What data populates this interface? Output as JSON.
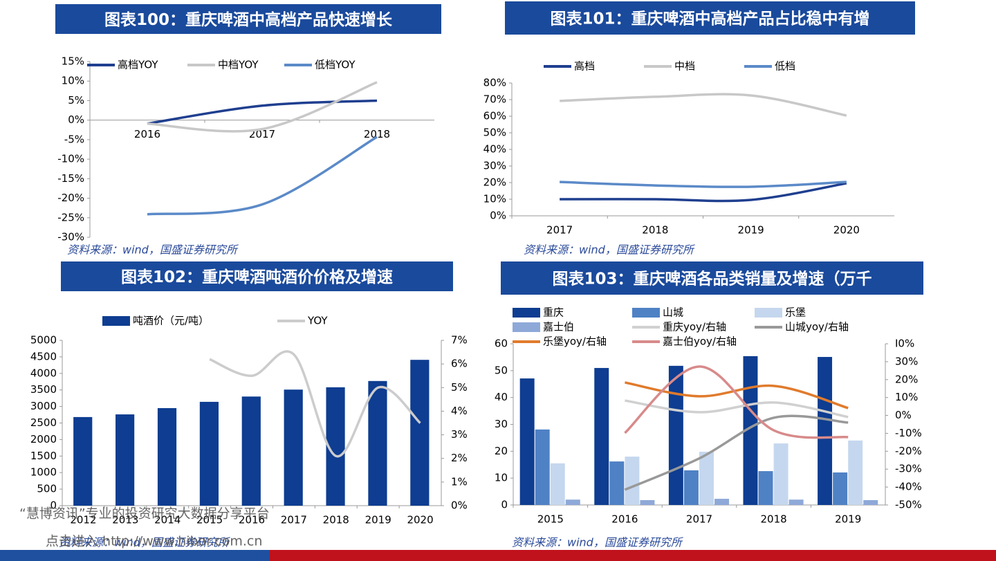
{
  "chart_data": [
    {
      "type": "line",
      "title": "图表100：重庆啤酒中高档产品快速增长",
      "source": "资料来源：wind，国盛证券研究所",
      "categories": [
        "2016",
        "2017",
        "2018"
      ],
      "series": [
        {
          "name": "高档YOY",
          "color": "#1f3f8f",
          "values": [
            -0.9,
            3.7,
            5.0
          ]
        },
        {
          "name": "中档YOY",
          "color": "#c8c8c8",
          "values": [
            -0.9,
            -2.3,
            9.7
          ]
        },
        {
          "name": "低档YOY",
          "color": "#5b8ac8",
          "values": [
            -24.1,
            -21.6,
            -4.3
          ]
        }
      ],
      "ylim": [
        -30,
        15
      ],
      "yticks": [
        {
          "value": -30,
          "label": "-30%"
        },
        {
          "value": -25,
          "label": "-25%"
        },
        {
          "value": -20,
          "label": "-20%"
        },
        {
          "value": -15,
          "label": "-15%"
        },
        {
          "value": -10,
          "label": "-10%"
        },
        {
          "value": -5,
          "label": "-5%"
        },
        {
          "value": 0,
          "label": "0%"
        },
        {
          "value": 5,
          "label": "5%"
        },
        {
          "value": 10,
          "label": "10%"
        },
        {
          "value": 15,
          "label": "15%"
        }
      ]
    },
    {
      "type": "line",
      "title": "图表101：重庆啤酒中高档产品占比稳中有增",
      "source": "资料来源：wind，国盛证券研究所",
      "categories": [
        "2017",
        "2018",
        "2019",
        "2020"
      ],
      "series": [
        {
          "name": "高档",
          "color": "#1f3f8f",
          "values": [
            10.0,
            10.0,
            9.6,
            19.6
          ]
        },
        {
          "name": "中档",
          "color": "#c8c8c8",
          "values": [
            69.2,
            71.7,
            72.5,
            60.4
          ]
        },
        {
          "name": "低档",
          "color": "#5b8ac8",
          "values": [
            20.4,
            18.3,
            17.5,
            20.4
          ]
        }
      ],
      "ylim": [
        0,
        80
      ],
      "yticks": [
        {
          "value": 0,
          "label": "0%"
        },
        {
          "value": 10,
          "label": "10%"
        },
        {
          "value": 20,
          "label": "20%"
        },
        {
          "value": 30,
          "label": "30%"
        },
        {
          "value": 40,
          "label": "40%"
        },
        {
          "value": 50,
          "label": "50%"
        },
        {
          "value": 60,
          "label": "60%"
        },
        {
          "value": 70,
          "label": "70%"
        },
        {
          "value": 80,
          "label": "80%"
        }
      ]
    },
    {
      "type": "combo",
      "title": "图表102：重庆啤酒吨酒价价格及增速",
      "source": "资料来源：wind，国盛证券研究所",
      "categories": [
        "2012",
        "2013",
        "2014",
        "2015",
        "2016",
        "2017",
        "2018",
        "2019",
        "2020"
      ],
      "series": [
        {
          "name": "吨酒价（元/吨）",
          "type": "bar",
          "color": "#0e3d91",
          "values": [
            2680,
            2760,
            2950,
            3140,
            3300,
            3510,
            3580,
            3770,
            4410
          ]
        },
        {
          "name": "YOY",
          "type": "line",
          "axis": "y2",
          "color": "#cccccc",
          "values": [
            null,
            null,
            null,
            6.2,
            5.5,
            6.4,
            2.1,
            5.0,
            3.5
          ]
        }
      ],
      "ylim": [
        0,
        5000
      ],
      "yticks": [
        0,
        500,
        1000,
        1500,
        2000,
        2500,
        3000,
        3500,
        4000,
        4500,
        5000
      ],
      "y2lim": [
        0,
        7
      ],
      "y2ticks": [
        {
          "value": 0,
          "label": "0%"
        },
        {
          "value": 1,
          "label": "1%"
        },
        {
          "value": 2,
          "label": "2%"
        },
        {
          "value": 3,
          "label": "3%"
        },
        {
          "value": 4,
          "label": "4%"
        },
        {
          "value": 5,
          "label": "5%"
        },
        {
          "value": 6,
          "label": "6%"
        },
        {
          "value": 7,
          "label": "7%"
        }
      ]
    },
    {
      "type": "combo",
      "title": "图表103：重庆啤酒各品类销量及增速（万千",
      "source": "资料来源：wind，国盛证券研究所",
      "categories": [
        "2015",
        "2016",
        "2017",
        "2018",
        "2019"
      ],
      "series": [
        {
          "name": "重庆",
          "type": "bar",
          "color": "#0e3d91",
          "values": [
            47.1,
            51.0,
            51.8,
            55.4,
            55.1
          ]
        },
        {
          "name": "山城",
          "type": "bar",
          "color": "#4f81c5",
          "values": [
            28.1,
            16.2,
            12.9,
            12.6,
            12.1
          ]
        },
        {
          "name": "乐堡",
          "type": "bar",
          "color": "#c5d7ee",
          "values": [
            15.5,
            18.0,
            19.8,
            22.9,
            24.0
          ]
        },
        {
          "name": "嘉士伯",
          "type": "bar",
          "color": "#8ea9d8",
          "values": [
            2.0,
            1.8,
            2.3,
            2.0,
            1.8
          ]
        },
        {
          "name": "重庆yoy/右轴",
          "type": "line",
          "axis": "y2",
          "color": "#d0d0d0",
          "values": [
            null,
            8.3,
            1.8,
            7.2,
            -0.9
          ]
        },
        {
          "name": "山城yoy/右轴",
          "type": "line",
          "axis": "y2",
          "color": "#999999",
          "values": [
            null,
            -41.5,
            -24.0,
            -1.3,
            -4.0
          ]
        },
        {
          "name": "乐堡yoy/右轴",
          "type": "line",
          "axis": "y2",
          "color": "#e07b2c",
          "values": [
            null,
            18.4,
            10.7,
            16.5,
            4.1
          ]
        },
        {
          "name": "嘉士伯yoy/右轴",
          "type": "line",
          "axis": "y2",
          "color": "#d88a8a",
          "values": [
            null,
            -9.8,
            27.3,
            -8.3,
            -12.1
          ]
        }
      ],
      "ylim": [
        0,
        60
      ],
      "yticks": [
        0,
        10,
        20,
        30,
        40,
        50,
        60
      ],
      "y2lim": [
        -50,
        40
      ],
      "y2ticks": [
        {
          "value": -50,
          "label": "-50%"
        },
        {
          "value": -40,
          "label": "-40%"
        },
        {
          "value": -30,
          "label": "-30%"
        },
        {
          "value": -20,
          "label": "-20%"
        },
        {
          "value": -10,
          "label": "-10%"
        },
        {
          "value": 0,
          "label": "0%"
        },
        {
          "value": 10,
          "label": "10%"
        },
        {
          "value": 20,
          "label": "20%"
        },
        {
          "value": 30,
          "label": "30%"
        },
        {
          "value": 40,
          "label": "I0%"
        }
      ]
    }
  ],
  "watermark": {
    "line1": "“慧博资讯”专业的投资研究大数据分享平台",
    "line2": "点击进入 http://www.hibor.com.cn"
  }
}
